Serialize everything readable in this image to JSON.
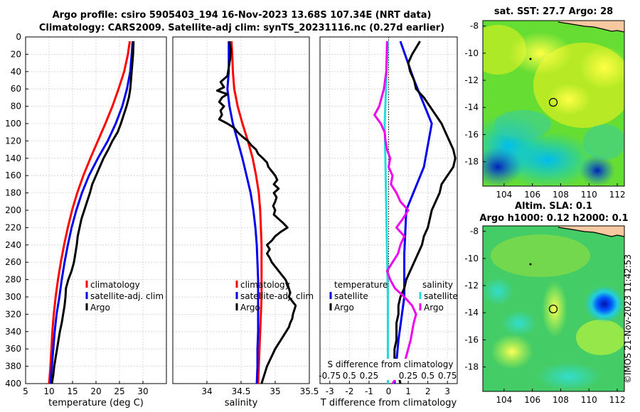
{
  "header": {
    "title_line1": "Argo profile: csiro 5905403_194 16-Nov-2023 13.68S 107.34E (NRT data)",
    "title_line2": "Climatology: CARS2009. Satellite-adj clim: synTS_20231116.nc (0.27d earlier)",
    "sst_title": "sat. SST: 27.7 Argo: 28",
    "sla_title_line1": "Altim. SLA: 0.1",
    "sla_title_line2": "Argo h1000: 0.12 h2000: 0.1",
    "credit": "©IMOS 21-Nov-2023 11:42:53"
  },
  "colors": {
    "climatology": "#ff0000",
    "satellite": "#0000ee",
    "argo": "#000000",
    "salinity_sat_diff": "#ee00ee",
    "temp_sat_diff": "#22dddd"
  },
  "chart_data": [
    {
      "id": "temperature",
      "type": "line",
      "xlabel": "temperature (deg C)",
      "ylabel": "depth",
      "xlim": [
        5,
        35
      ],
      "ylim": [
        0,
        400
      ],
      "xticks": [
        "5",
        "10",
        "15",
        "20",
        "25",
        "30"
      ],
      "yticks": [
        "0",
        "20",
        "40",
        "60",
        "80",
        "100",
        "120",
        "140",
        "160",
        "180",
        "200",
        "220",
        "240",
        "260",
        "280",
        "300",
        "320",
        "340",
        "360",
        "380",
        "400"
      ],
      "legend": [
        "climatology",
        "satellite-adj. clim",
        "Argo"
      ],
      "series": [
        {
          "name": "climatology",
          "depth": [
            5,
            20,
            40,
            60,
            80,
            100,
            120,
            140,
            160,
            180,
            200,
            220,
            240,
            260,
            280,
            300,
            320,
            340,
            360,
            380,
            400
          ],
          "values": [
            27.2,
            26.8,
            26.0,
            24.8,
            23.5,
            22.0,
            20.4,
            18.8,
            17.3,
            16.0,
            14.9,
            14.0,
            13.2,
            12.5,
            11.9,
            11.4,
            11.0,
            10.7,
            10.5,
            10.3,
            10.0
          ]
        },
        {
          "name": "satellite-adj. clim",
          "depth": [
            5,
            20,
            40,
            60,
            80,
            100,
            120,
            140,
            160,
            180,
            200,
            220,
            240,
            260,
            280,
            300,
            320,
            340,
            360,
            380,
            400
          ],
          "values": [
            27.8,
            27.6,
            27.3,
            26.6,
            25.6,
            24.2,
            22.5,
            20.4,
            18.5,
            17.0,
            15.8,
            14.8,
            14.0,
            13.3,
            12.7,
            12.2,
            11.6,
            11.2,
            10.9,
            10.6,
            10.3
          ]
        },
        {
          "name": "Argo",
          "depth": [
            5,
            20,
            40,
            60,
            70,
            80,
            90,
            100,
            110,
            120,
            130,
            140,
            150,
            160,
            170,
            180,
            190,
            200,
            210,
            220,
            230,
            240,
            250,
            260,
            270,
            280,
            290,
            300,
            310,
            320,
            330,
            340,
            350,
            360,
            370,
            380,
            390,
            400
          ],
          "values": [
            28.0,
            27.9,
            27.6,
            27.3,
            27.0,
            26.5,
            25.9,
            25.3,
            24.6,
            23.5,
            22.6,
            21.6,
            20.8,
            20.0,
            19.2,
            18.7,
            18.1,
            17.5,
            16.9,
            16.5,
            16.1,
            15.9,
            15.6,
            15.3,
            14.8,
            14.1,
            13.6,
            13.5,
            13.3,
            13.0,
            12.7,
            12.3,
            12.0,
            11.7,
            11.4,
            11.1,
            10.9,
            10.6
          ]
        }
      ]
    },
    {
      "id": "salinity",
      "type": "line",
      "xlabel": "salinity",
      "xlim": [
        33.5,
        35.5
      ],
      "ylim": [
        0,
        400
      ],
      "xticks": [
        "34",
        "34.5",
        "35",
        "35.5"
      ],
      "legend": [
        "climatology",
        "satellite-adj. clim",
        "Argo"
      ],
      "series": [
        {
          "name": "climatology",
          "depth": [
            5,
            20,
            40,
            60,
            80,
            100,
            120,
            140,
            160,
            180,
            200,
            220,
            240,
            260,
            280,
            300,
            320,
            340,
            360,
            380,
            400
          ],
          "values": [
            34.36,
            34.37,
            34.38,
            34.4,
            34.45,
            34.52,
            34.6,
            34.67,
            34.72,
            34.76,
            34.78,
            34.79,
            34.8,
            34.8,
            34.8,
            34.8,
            34.79,
            34.78,
            34.77,
            34.76,
            34.75
          ]
        },
        {
          "name": "satellite-adj. clim",
          "depth": [
            5,
            20,
            40,
            60,
            80,
            100,
            120,
            140,
            160,
            180,
            200,
            220,
            240,
            260,
            280,
            300,
            320,
            340,
            360,
            380,
            400
          ],
          "values": [
            34.32,
            34.32,
            34.32,
            34.3,
            34.33,
            34.38,
            34.45,
            34.52,
            34.58,
            34.64,
            34.68,
            34.71,
            34.73,
            34.74,
            34.75,
            34.75,
            34.75,
            34.75,
            34.74,
            34.74,
            34.73
          ]
        },
        {
          "name": "Argo",
          "depth": [
            5,
            15,
            25,
            35,
            45,
            52,
            58,
            62,
            66,
            70,
            75,
            80,
            85,
            90,
            95,
            100,
            105,
            110,
            115,
            120,
            125,
            130,
            135,
            140,
            145,
            150,
            155,
            160,
            165,
            170,
            175,
            180,
            185,
            190,
            195,
            200,
            205,
            210,
            215,
            220,
            225,
            230,
            235,
            240,
            245,
            250,
            255,
            260,
            265,
            270,
            275,
            280,
            285,
            290,
            295,
            300,
            305,
            310,
            315,
            320,
            325,
            330,
            335,
            340,
            345,
            350,
            355,
            360,
            365,
            370,
            375,
            380,
            385,
            390,
            395,
            400
          ],
          "values": [
            34.33,
            34.35,
            34.34,
            34.32,
            34.3,
            34.2,
            34.25,
            34.15,
            34.3,
            34.22,
            34.18,
            34.25,
            34.2,
            34.22,
            34.18,
            34.3,
            34.4,
            34.45,
            34.52,
            34.6,
            34.65,
            34.72,
            34.75,
            34.82,
            34.88,
            34.9,
            34.95,
            35.0,
            35.03,
            34.98,
            35.05,
            34.98,
            35.02,
            35.0,
            34.97,
            35.0,
            34.98,
            35.05,
            35.12,
            35.18,
            35.08,
            35.0,
            34.95,
            34.88,
            34.92,
            34.88,
            34.92,
            34.95,
            35.0,
            35.05,
            35.1,
            35.15,
            35.18,
            35.2,
            35.22,
            35.2,
            35.25,
            35.3,
            35.28,
            35.26,
            35.25,
            35.22,
            35.2,
            35.16,
            35.12,
            35.08,
            35.04,
            35.0,
            34.97,
            34.94,
            34.91,
            34.88,
            34.86,
            34.84,
            34.82,
            34.8
          ]
        }
      ]
    },
    {
      "id": "differences",
      "type": "line",
      "xlabel": "T difference from climatology",
      "xlabel_top": "S difference from climatology",
      "xlim": [
        -3.5,
        3.5
      ],
      "ylim": [
        0,
        400
      ],
      "xticks": [
        "-3",
        "-2",
        "-1",
        "0",
        "1",
        "2",
        "3"
      ],
      "xticks_salinity": [
        "-0.75",
        "0.5",
        "0.25",
        "0.25",
        "0.5",
        "0.75"
      ],
      "legend_titles": [
        "temperature",
        "salinity"
      ],
      "legend_left": [
        "satellite",
        "Argo"
      ],
      "legend_right": [
        "satellite",
        "Argo"
      ],
      "series": [
        {
          "name": "temperature satellite",
          "depth": [
            5,
            50,
            100,
            150,
            200,
            250,
            300,
            350,
            400
          ],
          "values": [
            0.6,
            1.3,
            2.2,
            1.8,
            0.9,
            0.8,
            0.8,
            0.5,
            0.3
          ]
        },
        {
          "name": "temperature Argo",
          "depth": [
            5,
            20,
            30,
            40,
            50,
            60,
            70,
            80,
            90,
            100,
            110,
            120,
            130,
            140,
            150,
            160,
            170,
            180,
            190,
            200,
            210,
            220,
            230,
            240,
            250,
            260,
            270,
            280,
            290,
            300,
            310,
            320,
            330,
            340,
            350,
            360,
            370,
            380,
            390,
            400
          ],
          "values": [
            1.6,
            1.2,
            1.0,
            1.1,
            1.3,
            1.4,
            1.8,
            2.1,
            2.4,
            2.7,
            2.9,
            3.1,
            3.3,
            3.4,
            3.3,
            3.0,
            2.7,
            2.6,
            2.4,
            2.2,
            2.1,
            2.0,
            1.8,
            1.7,
            1.5,
            1.3,
            1.1,
            0.9,
            0.8,
            0.6,
            0.5,
            0.5,
            0.4,
            0.4,
            0.4,
            0.3,
            0.3,
            0.4,
            0.5,
            0.6
          ]
        },
        {
          "name": "salinity satellite",
          "depth": [
            5,
            50,
            100,
            150,
            200,
            250,
            300,
            350,
            400
          ],
          "values": [
            -0.01,
            -0.03,
            -0.05,
            -0.04,
            -0.03,
            -0.02,
            -0.01,
            -0.01,
            -0.01
          ]
        },
        {
          "name": "salinity Argo",
          "depth": [
            5,
            40,
            60,
            80,
            90,
            100,
            110,
            120,
            130,
            140,
            150,
            160,
            170,
            180,
            190,
            200,
            210,
            220,
            230,
            240,
            250,
            260,
            270,
            280,
            290,
            300,
            310,
            320,
            330,
            340,
            350,
            360,
            370,
            380,
            390,
            400
          ],
          "values": [
            -0.02,
            -0.03,
            -0.06,
            -0.12,
            -0.18,
            -0.1,
            -0.05,
            -0.04,
            -0.02,
            0.02,
            0.0,
            0.05,
            0.03,
            0.1,
            0.15,
            0.25,
            0.18,
            0.1,
            0.2,
            0.15,
            0.12,
            0.05,
            -0.02,
            0.02,
            0.08,
            0.2,
            0.3,
            0.35,
            0.32,
            0.3,
            0.28,
            0.25,
            0.22,
            0.18,
            0.12,
            0.05
          ]
        }
      ]
    },
    {
      "id": "sst_map",
      "type": "heatmap",
      "title": "sat. SST: 27.7 Argo: 28",
      "xlim": [
        102.5,
        112.5
      ],
      "ylim": [
        -19.8,
        -7.6
      ],
      "xticks": [
        "104",
        "106",
        "108",
        "110",
        "112"
      ],
      "yticks": [
        "-8",
        "-10",
        "-12",
        "-14",
        "-16",
        "-18"
      ],
      "argo_position": [
        107.34,
        -13.68
      ]
    },
    {
      "id": "sla_map",
      "type": "heatmap",
      "title": "Altim. SLA: 0.1",
      "xlim": [
        102.5,
        112.5
      ],
      "ylim": [
        -19.8,
        -7.6
      ],
      "xticks": [
        "104",
        "106",
        "108",
        "110",
        "112"
      ],
      "yticks": [
        "-8",
        "-10",
        "-12",
        "-14",
        "-16",
        "-18"
      ],
      "argo_position": [
        107.34,
        -13.68
      ]
    }
  ]
}
